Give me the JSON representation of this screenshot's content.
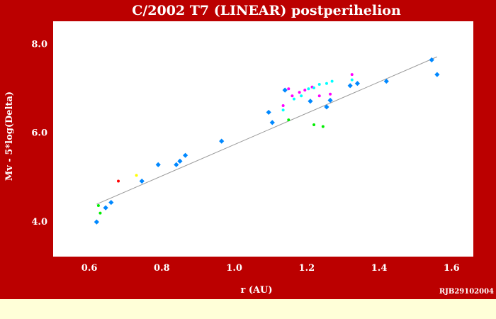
{
  "chart_data": {
    "type": "scatter",
    "title": "C/2002 T7 (LINEAR)  postperihelion",
    "xlabel": "r (AU)",
    "ylabel": "Mv - 5*log(Delta)",
    "credit": "RJB29102004",
    "xlim": [
      0.5,
      1.66
    ],
    "ylim": [
      8.5,
      3.2
    ],
    "y_inverted": true,
    "grid": false,
    "x_ticks": [
      {
        "value": 0.6,
        "label": "0.6"
      },
      {
        "value": 0.8,
        "label": "0.8"
      },
      {
        "value": 1.0,
        "label": "1.0"
      },
      {
        "value": 1.2,
        "label": "1.2"
      },
      {
        "value": 1.4,
        "label": "1.4"
      },
      {
        "value": 1.6,
        "label": "1.6"
      }
    ],
    "y_ticks": [
      {
        "value": 4.0,
        "label": "4.0"
      },
      {
        "value": 6.0,
        "label": "6.0"
      },
      {
        "value": 8.0,
        "label": "8.0"
      }
    ],
    "trend_line": {
      "x": [
        0.62,
        1.56
      ],
      "y": [
        4.38,
        7.7
      ],
      "color": "#999999"
    },
    "series": [
      {
        "color": "#0088ff",
        "marker": "diamond",
        "points": [
          [
            0.62,
            3.98
          ],
          [
            0.645,
            4.3
          ],
          [
            0.66,
            4.42
          ],
          [
            0.745,
            4.9
          ],
          [
            0.79,
            5.27
          ],
          [
            0.84,
            5.27
          ],
          [
            0.85,
            5.35
          ],
          [
            0.865,
            5.48
          ],
          [
            0.965,
            5.8
          ],
          [
            1.095,
            6.45
          ],
          [
            1.105,
            6.22
          ],
          [
            1.14,
            6.95
          ],
          [
            1.21,
            6.7
          ],
          [
            1.255,
            6.57
          ],
          [
            1.265,
            6.72
          ],
          [
            1.32,
            7.05
          ],
          [
            1.34,
            7.1
          ],
          [
            1.42,
            7.15
          ],
          [
            1.545,
            7.63
          ],
          [
            1.56,
            7.3
          ]
        ]
      },
      {
        "color": "#00ee00",
        "marker": "dot",
        "points": [
          [
            0.625,
            4.35
          ],
          [
            0.63,
            4.18
          ],
          [
            1.15,
            6.28
          ],
          [
            1.22,
            6.17
          ],
          [
            1.245,
            6.13
          ]
        ]
      },
      {
        "color": "#ff00ff",
        "marker": "dot",
        "points": [
          [
            1.135,
            6.6
          ],
          [
            1.15,
            6.98
          ],
          [
            1.16,
            6.82
          ],
          [
            1.18,
            6.9
          ],
          [
            1.195,
            6.95
          ],
          [
            1.215,
            7.02
          ],
          [
            1.235,
            6.82
          ],
          [
            1.265,
            6.86
          ],
          [
            1.325,
            7.3
          ]
        ]
      },
      {
        "color": "#00ffff",
        "marker": "dot",
        "points": [
          [
            1.135,
            6.5
          ],
          [
            1.165,
            6.75
          ],
          [
            1.185,
            6.82
          ],
          [
            1.205,
            6.98
          ],
          [
            1.22,
            7.0
          ],
          [
            1.235,
            7.08
          ],
          [
            1.255,
            7.1
          ],
          [
            1.27,
            7.15
          ],
          [
            1.325,
            7.18
          ]
        ]
      },
      {
        "color": "#ff0000",
        "marker": "dot",
        "points": [
          [
            0.68,
            4.9
          ]
        ]
      },
      {
        "color": "#ffff00",
        "marker": "dot",
        "points": [
          [
            0.73,
            5.03
          ]
        ]
      }
    ]
  }
}
